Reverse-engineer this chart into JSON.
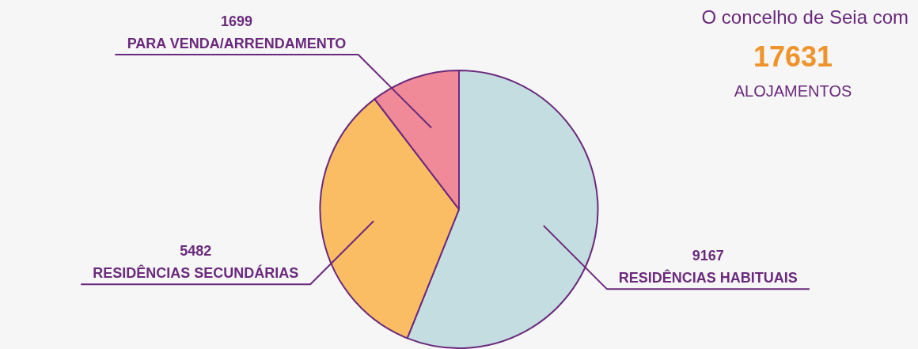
{
  "chart_data": {
    "type": "pie",
    "title": "O concelho de Seia com",
    "annotations": [
      "17631",
      "ALOJAMENTOS"
    ],
    "categories": [
      "RESIDÊNCIAS HABITUAIS",
      "RESIDÊNCIAS SECUNDÁRIAS",
      "PARA VENDA/ARRENDAMENTO"
    ],
    "values": [
      9167,
      5482,
      1699
    ],
    "colors": [
      "#c3dde0",
      "#fbbd63",
      "#f08a98"
    ],
    "data_labels": true,
    "legend": false
  }
}
